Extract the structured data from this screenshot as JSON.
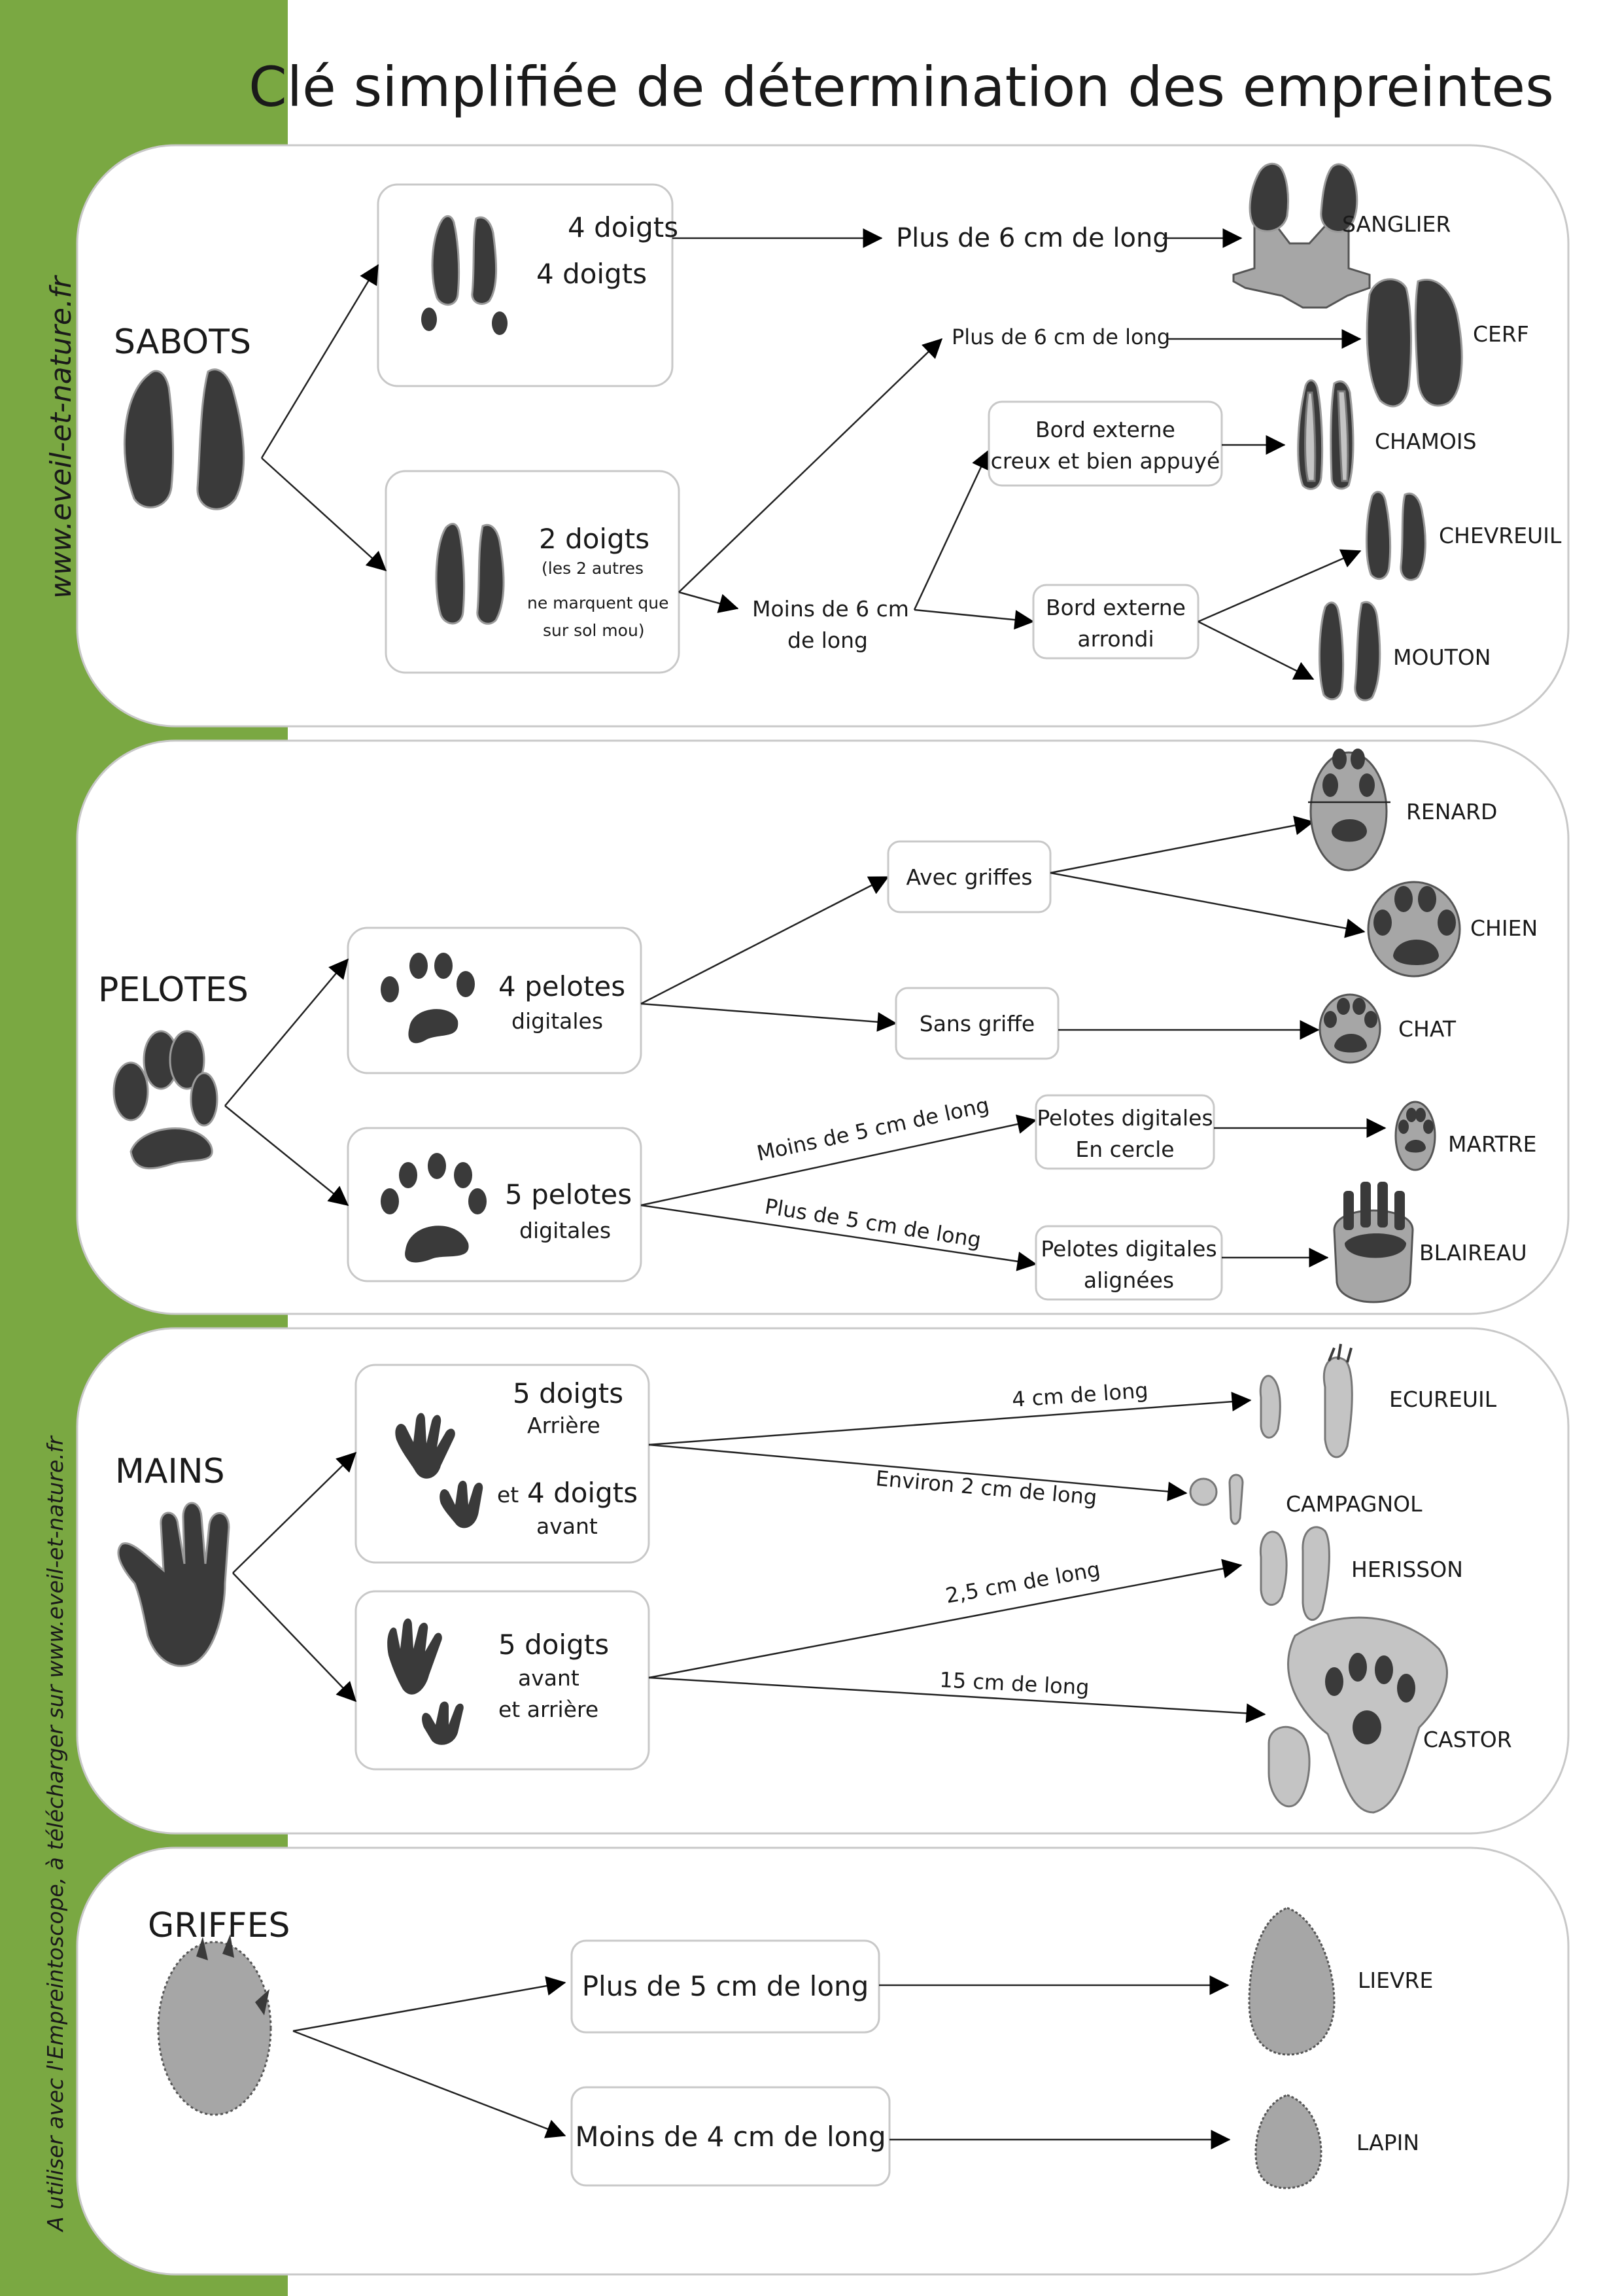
{
  "title": "Clé simplifiée de détermination des empreintes",
  "side_text": {
    "top": "www.eveil-et-nature.fr",
    "bottom": "A utiliser avec l'Empreintoscope, à télécharger sur www.eveil-et-nature.fr"
  },
  "colors": {
    "sidebar": "#7aa842",
    "panel_border": "#c8c8c8",
    "print_dark": "#3a3a3a",
    "print_grey": "#a6a6a6"
  },
  "sections": {
    "sabots": {
      "heading": "SABOTS",
      "box_4doigts": {
        "line1": "4 doigts",
        "line2": "4 doigts"
      },
      "box_2doigts": {
        "line1": "2 doigts",
        "line2": "(les 2 autres",
        "line3": "ne marquent  que",
        "line4": "sur sol mou)"
      },
      "plus6_a": "Plus de 6 cm de long",
      "plus6_b": "Plus de 6 cm de long",
      "moins6": {
        "line1": "Moins de 6 cm",
        "line2": "de long"
      },
      "bord_creux": {
        "line1": "Bord externe",
        "line2": "creux et bien appuyé"
      },
      "bord_arrondi": {
        "line1": "Bord externe",
        "line2": "arrondi"
      },
      "animals": {
        "sanglier": "SANGLIER",
        "cerf": "CERF",
        "chamois": "CHAMOIS",
        "chevreuil": "CHEVREUIL",
        "mouton": "MOUTON"
      }
    },
    "pelotes": {
      "heading": "PELOTES",
      "box_4": {
        "line1": "4 pelotes",
        "line2": "digitales"
      },
      "box_5": {
        "line1": "5 pelotes",
        "line2": "digitales"
      },
      "avec_griffes": "Avec griffes",
      "sans_griffe": "Sans griffe",
      "moins5": "Moins de 5 cm de long",
      "plus5": "Plus de 5 cm de long",
      "cercle": {
        "line1": "Pelotes digitales",
        "line2": "En cercle"
      },
      "alignees": {
        "line1": "Pelotes digitales",
        "line2": "alignées"
      },
      "animals": {
        "renard": "RENARD",
        "chien": "CHIEN",
        "chat": "CHAT",
        "martre": "MARTRE",
        "blaireau": "BLAIREAU"
      }
    },
    "mains": {
      "heading": "MAINS",
      "box_a": {
        "line1": "5 doigts",
        "line2": "Arrière",
        "line3_prefix": "et",
        "line3": "4 doigts",
        "line4": "avant"
      },
      "box_b": {
        "line1": "5 doigts",
        "line2": "avant",
        "line3": "et arrière"
      },
      "l4cm": "4 cm de long",
      "l2cm": "Environ 2 cm de long",
      "l25cm": "2,5 cm de long",
      "l15cm": "15 cm de long",
      "animals": {
        "ecureuil": "ECUREUIL",
        "campagnol": "CAMPAGNOL",
        "herisson": "HERISSON",
        "castor": "CASTOR"
      }
    },
    "griffes": {
      "heading": "GRIFFES",
      "plus5": "Plus de 5 cm de long",
      "moins4": "Moins de 4 cm de long",
      "animals": {
        "lievre": "LIEVRE",
        "lapin": "LAPIN"
      }
    }
  }
}
